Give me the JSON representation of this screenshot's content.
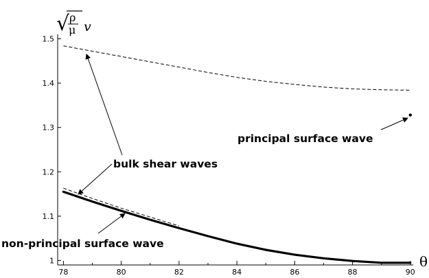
{
  "chart_data": {
    "type": "line",
    "title": "",
    "xlabel": "θ",
    "ylabel": {
      "prefix": "√",
      "numerator": "ρ",
      "denominator": "μ",
      "variable": "v"
    },
    "xlim": [
      77.8,
      90.1
    ],
    "ylim": [
      0.99,
      1.51
    ],
    "x_ticks": [
      78,
      80,
      82,
      84,
      86,
      88,
      90
    ],
    "y_ticks": [
      1,
      1.1,
      1.2,
      1.3,
      1.4,
      1.5
    ],
    "grid": false,
    "series": [
      {
        "style": "dashed",
        "x": [
          78,
          79,
          80,
          81,
          82,
          83,
          84,
          85,
          86,
          87,
          88,
          89,
          90
        ],
        "y": [
          1.484,
          1.472,
          1.46,
          1.448,
          1.436,
          1.424,
          1.413,
          1.404,
          1.397,
          1.391,
          1.387,
          1.385,
          1.384
        ]
      },
      {
        "style": "dashed",
        "x": [
          78,
          79,
          80,
          81,
          82
        ],
        "y": [
          1.163,
          1.14,
          1.118,
          1.098,
          1.078
        ]
      },
      {
        "style": "solid-thick",
        "x": [
          78,
          79,
          80,
          81,
          82,
          83,
          84,
          85,
          86,
          87,
          88,
          89,
          90
        ],
        "y": [
          1.155,
          1.133,
          1.112,
          1.092,
          1.073,
          1.055,
          1.038,
          1.024,
          1.013,
          1.005,
          0.999,
          0.995,
          0.995
        ]
      }
    ],
    "points": [
      {
        "x": 90,
        "y": 1.328
      }
    ],
    "annotations": [
      {
        "text": "principal surface wave"
      },
      {
        "text": "bulk shear waves"
      },
      {
        "text": "non-principal surface wave"
      }
    ]
  }
}
